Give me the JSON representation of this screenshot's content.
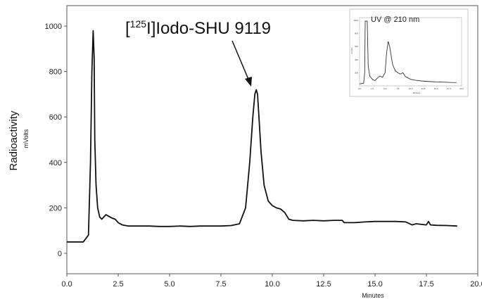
{
  "chart_data": {
    "type": "line",
    "ylabel": "Radioactivity",
    "ylabel_units": "mVolts",
    "xlabel": "Minutes",
    "xlim": [
      0.0,
      20.0
    ],
    "ylim": [
      -90,
      1090
    ],
    "xticks": [
      "0.0",
      "2.5",
      "5.0",
      "7.5",
      "10.0",
      "12.5",
      "15.0",
      "17.5",
      "20.0"
    ],
    "yticks": [
      "0",
      "200",
      "400",
      "600",
      "800",
      "1000"
    ],
    "grid": false,
    "series": [
      {
        "x": [
          0.0,
          0.8,
          1.05,
          1.15,
          1.22,
          1.28,
          1.33,
          1.36,
          1.42,
          1.5,
          1.6,
          1.7,
          1.8,
          1.9,
          2.0,
          2.1,
          2.2,
          2.35,
          2.5,
          2.7,
          3.0,
          3.5,
          4.0,
          4.5,
          5.0,
          5.5,
          6.0,
          6.5,
          7.0,
          7.5,
          8.0,
          8.4,
          8.7,
          8.9,
          9.05,
          9.15,
          9.22,
          9.28,
          9.35,
          9.45,
          9.6,
          9.8,
          10.0,
          10.2,
          10.4,
          10.6,
          10.8,
          11.0,
          11.5,
          12.0,
          12.5,
          13.0,
          13.4,
          13.5,
          14.0,
          14.5,
          15.0,
          15.5,
          16.0,
          16.5,
          16.8,
          17.0,
          17.5,
          17.6,
          17.7,
          18.0,
          18.5,
          19.0
        ],
        "y": [
          50,
          50,
          80,
          400,
          800,
          980,
          860,
          500,
          300,
          200,
          160,
          150,
          160,
          170,
          165,
          160,
          155,
          150,
          135,
          125,
          120,
          120,
          120,
          118,
          118,
          120,
          118,
          120,
          120,
          120,
          122,
          130,
          200,
          400,
          600,
          700,
          720,
          700,
          600,
          450,
          300,
          230,
          210,
          200,
          195,
          180,
          150,
          145,
          143,
          145,
          143,
          145,
          145,
          135,
          135,
          138,
          140,
          140,
          140,
          138,
          125,
          130,
          125,
          140,
          125,
          123,
          122,
          120
        ]
      }
    ],
    "annotations": [
      {
        "text_pre": "[",
        "text_sup": "125",
        "text_post": "I]Iodo-SHU 9119",
        "target_x": 9.2,
        "target_y": 730
      }
    ],
    "inset": {
      "title": "UV @ 210 nm",
      "xlim": [
        0,
        20
      ],
      "ylim": [
        0,
        1000
      ],
      "x": [
        0,
        0.8,
        1.0,
        1.1,
        1.2,
        1.5,
        1.7,
        2.0,
        2.5,
        3.0,
        3.5,
        4.0,
        4.5,
        5.0,
        5.3,
        5.6,
        5.9,
        6.2,
        6.5,
        7.0,
        7.5,
        8.0,
        8.5,
        9.0,
        9.5,
        10.0,
        11.0,
        12.0,
        13.0,
        14.0,
        15.0,
        16.0,
        17.0,
        18.0,
        19.0
      ],
      "y": [
        30,
        40,
        200,
        990,
        990,
        990,
        300,
        150,
        100,
        80,
        120,
        150,
        130,
        200,
        500,
        680,
        600,
        450,
        320,
        230,
        200,
        180,
        200,
        140,
        120,
        100,
        85,
        75,
        70,
        65,
        60,
        58,
        55,
        52,
        50
      ],
      "xticks": [
        "0.0",
        "2.5",
        "5.0",
        "7.5",
        "10.0",
        "12.5",
        "15.0",
        "17.5",
        "20.0"
      ],
      "yticks": [
        "200",
        "400",
        "600",
        "800",
        "1000"
      ],
      "ylabel": "mVolts",
      "xlabel": "Minutes"
    }
  }
}
